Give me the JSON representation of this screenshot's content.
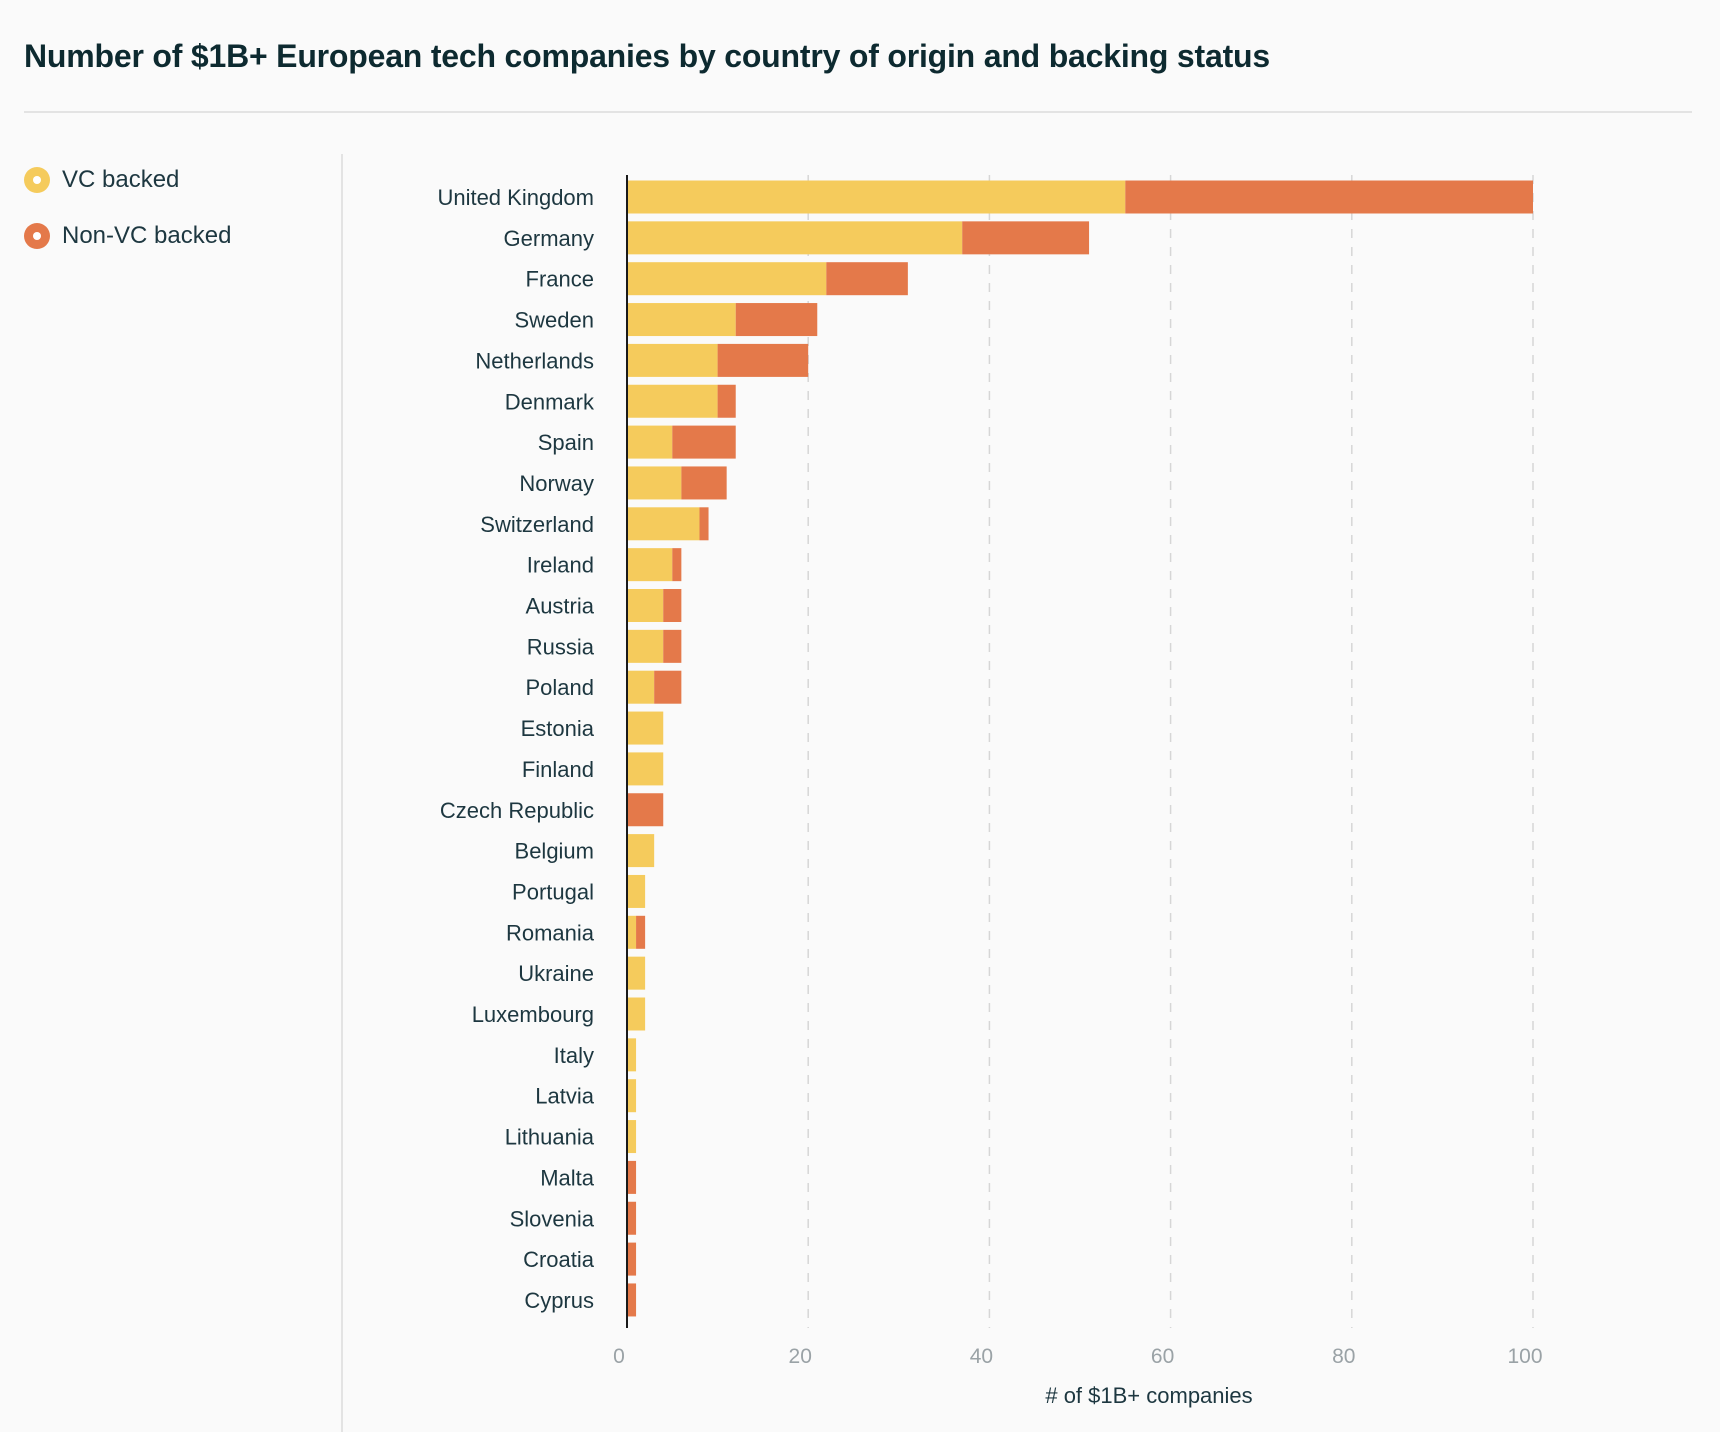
{
  "chart_data": {
    "type": "bar",
    "orientation": "horizontal",
    "stacked": true,
    "title": "Number of $1B+ European tech companies by country of origin and backing status",
    "xlabel": "# of $1B+ companies",
    "ylabel": "",
    "xlim": [
      0,
      110
    ],
    "xticks": [
      0,
      20,
      40,
      60,
      80,
      100
    ],
    "grid": "vertical-dashed",
    "legend_placement": "left",
    "colors": {
      "VC backed": "#f5cb5c",
      "Non-VC backed": "#e4794a"
    },
    "categories": [
      "United Kingdom",
      "Germany",
      "France",
      "Sweden",
      "Netherlands",
      "Denmark",
      "Spain",
      "Norway",
      "Switzerland",
      "Ireland",
      "Austria",
      "Russia",
      "Poland",
      "Estonia",
      "Finland",
      "Czech Republic",
      "Belgium",
      "Portugal",
      "Romania",
      "Ukraine",
      "Luxembourg",
      "Italy",
      "Latvia",
      "Lithuania",
      "Malta",
      "Slovenia",
      "Croatia",
      "Cyprus"
    ],
    "series": [
      {
        "name": "VC backed",
        "values": [
          55,
          37,
          22,
          12,
          10,
          10,
          5,
          6,
          8,
          5,
          4,
          4,
          3,
          4,
          4,
          0,
          3,
          2,
          1,
          2,
          2,
          1,
          1,
          1,
          0,
          0,
          0,
          0
        ]
      },
      {
        "name": "Non-VC backed",
        "values": [
          45,
          14,
          9,
          9,
          10,
          2,
          7,
          5,
          1,
          1,
          2,
          2,
          3,
          0,
          0,
          4,
          0,
          0,
          1,
          0,
          0,
          0,
          0,
          0,
          1,
          1,
          1,
          1
        ]
      }
    ]
  }
}
